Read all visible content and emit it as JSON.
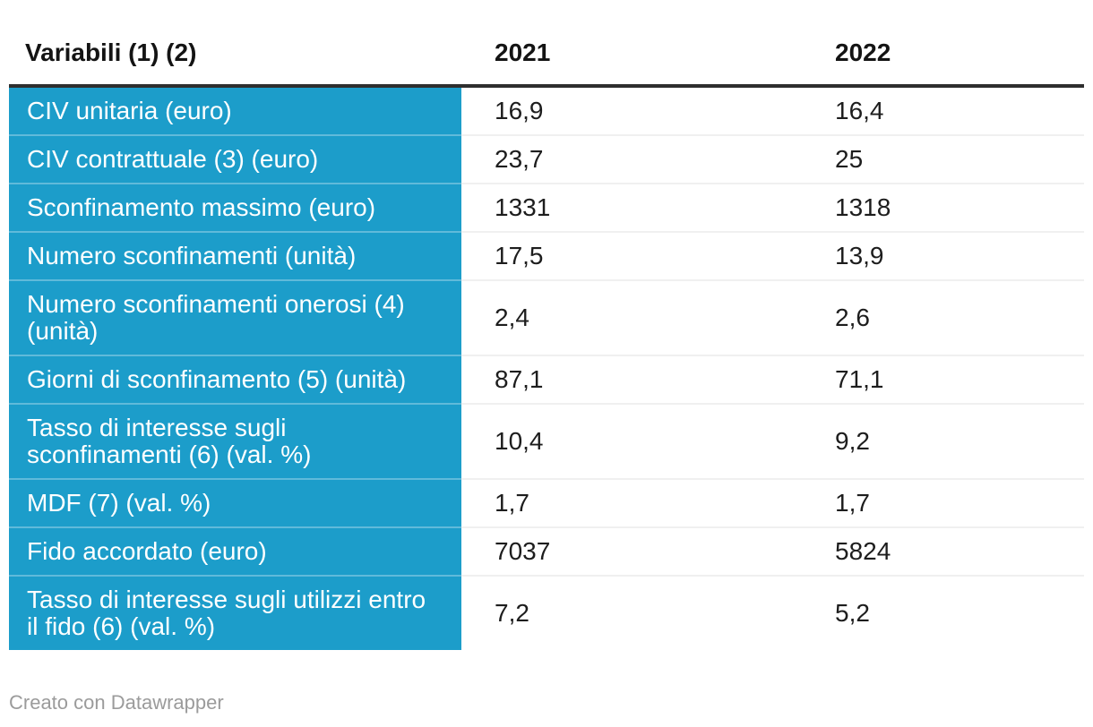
{
  "chart_data": {
    "type": "table",
    "title": "",
    "columns": [
      "Variabili (1) (2)",
      "2021",
      "2022"
    ],
    "rows": [
      {
        "variable": "CIV unitaria (euro)",
        "v2021": "16,9",
        "v2022": "16,4"
      },
      {
        "variable": "CIV contrattuale (3) (euro)",
        "v2021": "23,7",
        "v2022": "25"
      },
      {
        "variable": "Sconfinamento massimo (euro)",
        "v2021": "1331",
        "v2022": "1318"
      },
      {
        "variable": "Numero sconfinamenti (unità)",
        "v2021": "17,5",
        "v2022": "13,9"
      },
      {
        "variable": "Numero sconfinamenti onerosi (4)\n(unità)",
        "v2021": "2,4",
        "v2022": "2,6"
      },
      {
        "variable": "Giorni di sconfinamento (5) (unità)",
        "v2021": "87,1",
        "v2022": "71,1"
      },
      {
        "variable": "Tasso di interesse sugli\nsconfinamenti (6) (val. %)",
        "v2021": "10,4",
        "v2022": "9,2"
      },
      {
        "variable": "MDF (7) (val. %)",
        "v2021": "1,7",
        "v2022": "1,7"
      },
      {
        "variable": "Fido accordato (euro)",
        "v2021": "7037",
        "v2022": "5824"
      },
      {
        "variable": "Tasso di interesse sugli utilizzi entro\nil fido (6) (val. %)",
        "v2021": "7,2",
        "v2022": "5,2"
      }
    ],
    "layout_hints": {
      "first_column_highlight": true,
      "grid": "horizontal-dividers-only",
      "header_rule": true
    }
  },
  "colors": {
    "label_cell_bg": "#1c9dca",
    "label_cell_text": "#ffffff",
    "header_rule": "#2e2e2e",
    "row_divider": "#f0f0f0",
    "value_text": "#1d1d1d",
    "footer_text": "#9b9b9b"
  },
  "footer": {
    "credit": "Creato con Datawrapper"
  }
}
